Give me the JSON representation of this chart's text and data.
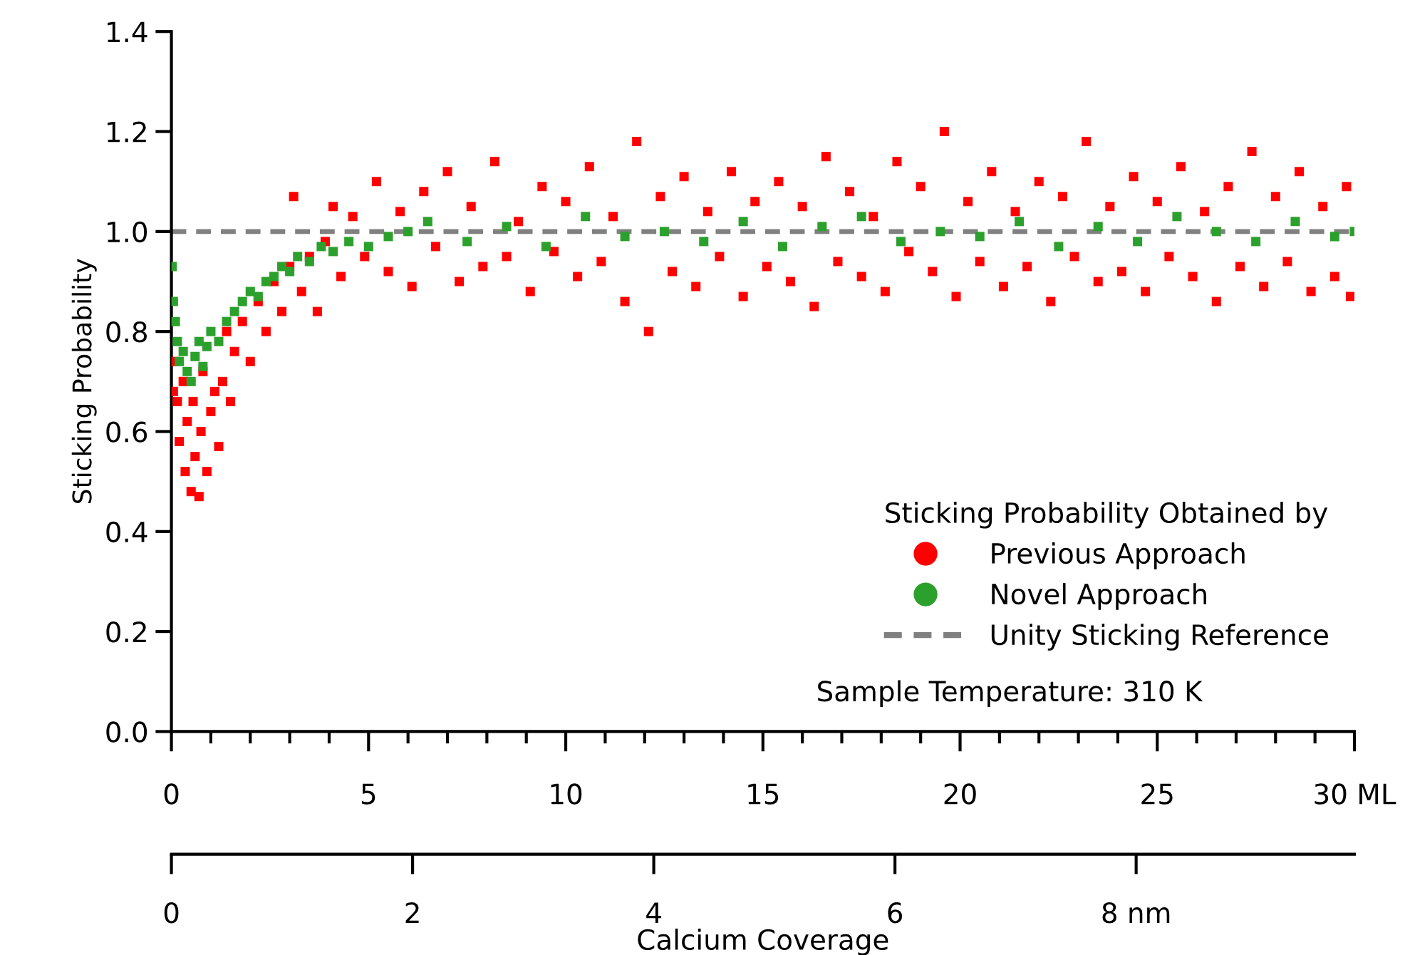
{
  "chart_data": {
    "type": "scatter",
    "ylabel": "Sticking Probability",
    "x2label": "Calcium Coverage",
    "legend_title": "Sticking Probability Obtained by",
    "annotations": [
      "Sample Temperature: 310 K"
    ],
    "xlim": [
      0,
      30
    ],
    "xticks": [
      0,
      {
        "value": 1,
        "label": null
      },
      {
        "value": 2,
        "label": null
      },
      {
        "value": 3,
        "label": null
      },
      {
        "value": 4,
        "label": null
      },
      5,
      {
        "value": 6,
        "label": null
      },
      {
        "value": 7,
        "label": null
      },
      {
        "value": 8,
        "label": null
      },
      {
        "value": 9,
        "label": null
      },
      10,
      {
        "value": 11,
        "label": null
      },
      {
        "value": 12,
        "label": null
      },
      {
        "value": 13,
        "label": null
      },
      {
        "value": 14,
        "label": null
      },
      15,
      {
        "value": 16,
        "label": null
      },
      {
        "value": 17,
        "label": null
      },
      {
        "value": 18,
        "label": null
      },
      {
        "value": 19,
        "label": null
      },
      20,
      {
        "value": 21,
        "label": null
      },
      {
        "value": 22,
        "label": null
      },
      {
        "value": 23,
        "label": null
      },
      {
        "value": 24,
        "label": null
      },
      25,
      {
        "value": 26,
        "label": null
      },
      {
        "value": 27,
        "label": null
      },
      {
        "value": 28,
        "label": null
      },
      {
        "value": 29,
        "label": null
      },
      {
        "value": 30,
        "label": "30 ML"
      }
    ],
    "x2lim": [
      0,
      9.81
    ],
    "x2ticks": [
      0,
      2,
      4,
      6,
      {
        "value": 8,
        "label": "8 nm"
      }
    ],
    "ylim": [
      0,
      1.4
    ],
    "yticks": [
      {
        "value": 0,
        "label": "0.0"
      },
      0.2,
      0.4,
      0.6,
      0.8,
      {
        "value": 1,
        "label": "1.0"
      },
      1.2,
      1.4
    ],
    "grid": false,
    "legend": "bottom right",
    "marker": "square",
    "ref_lines": [
      {
        "axis": "y",
        "value": 1.0,
        "label": "Unity Sticking Reference",
        "color": "#808080",
        "line_style": "dashed"
      }
    ],
    "series": [
      {
        "name": "Previous Approach",
        "color": "#ff0000",
        "x": [
          0.05,
          0.1,
          0.15,
          0.2,
          0.3,
          0.35,
          0.4,
          0.5,
          0.55,
          0.6,
          0.7,
          0.75,
          0.8,
          0.9,
          1.0,
          1.1,
          1.2,
          1.3,
          1.4,
          1.5,
          1.6,
          1.8,
          2.0,
          2.2,
          2.4,
          2.6,
          2.8,
          3.0,
          3.1,
          3.3,
          3.5,
          3.7,
          3.9,
          4.1,
          4.3,
          4.6,
          4.9,
          5.2,
          5.5,
          5.8,
          6.1,
          6.4,
          6.7,
          7.0,
          7.3,
          7.6,
          7.9,
          8.2,
          8.5,
          8.8,
          9.1,
          9.4,
          9.7,
          10.0,
          10.3,
          10.6,
          10.9,
          11.2,
          11.5,
          11.8,
          12.1,
          12.4,
          12.7,
          13.0,
          13.3,
          13.6,
          13.9,
          14.2,
          14.5,
          14.8,
          15.1,
          15.4,
          15.7,
          16.0,
          16.3,
          16.6,
          16.9,
          17.2,
          17.5,
          17.8,
          18.1,
          18.4,
          18.7,
          19.0,
          19.3,
          19.6,
          19.9,
          20.2,
          20.5,
          20.8,
          21.1,
          21.4,
          21.7,
          22.0,
          22.3,
          22.6,
          22.9,
          23.2,
          23.5,
          23.8,
          24.1,
          24.4,
          24.7,
          25.0,
          25.3,
          25.6,
          25.9,
          26.2,
          26.5,
          26.8,
          27.1,
          27.4,
          27.7,
          28.0,
          28.3,
          28.6,
          28.9,
          29.2,
          29.5,
          29.8,
          29.9
        ],
        "values": [
          0.68,
          0.74,
          0.66,
          0.58,
          0.7,
          0.52,
          0.62,
          0.48,
          0.66,
          0.55,
          0.47,
          0.6,
          0.72,
          0.52,
          0.64,
          0.68,
          0.57,
          0.7,
          0.8,
          0.66,
          0.76,
          0.82,
          0.74,
          0.86,
          0.8,
          0.9,
          0.84,
          0.93,
          1.07,
          0.88,
          0.95,
          0.84,
          0.98,
          1.05,
          0.91,
          1.03,
          0.95,
          1.1,
          0.92,
          1.04,
          0.89,
          1.08,
          0.97,
          1.12,
          0.9,
          1.05,
          0.93,
          1.14,
          0.95,
          1.02,
          0.88,
          1.09,
          0.96,
          1.06,
          0.91,
          1.13,
          0.94,
          1.03,
          0.86,
          1.18,
          0.8,
          1.07,
          0.92,
          1.11,
          0.89,
          1.04,
          0.95,
          1.12,
          0.87,
          1.06,
          0.93,
          1.1,
          0.9,
          1.05,
          0.85,
          1.15,
          0.94,
          1.08,
          0.91,
          1.03,
          0.88,
          1.14,
          0.96,
          1.09,
          0.92,
          1.2,
          0.87,
          1.06,
          0.94,
          1.12,
          0.89,
          1.04,
          0.93,
          1.1,
          0.86,
          1.07,
          0.95,
          1.18,
          0.9,
          1.05,
          0.92,
          1.11,
          0.88,
          1.06,
          0.95,
          1.13,
          0.91,
          1.04,
          0.86,
          1.09,
          0.93,
          1.16,
          0.89,
          1.07,
          0.94,
          1.12,
          0.88,
          1.05,
          0.91,
          1.09,
          0.87
        ]
      },
      {
        "name": "Novel Approach",
        "color": "#2ca02c",
        "x": [
          0.02,
          0.05,
          0.1,
          0.15,
          0.2,
          0.3,
          0.4,
          0.5,
          0.6,
          0.7,
          0.8,
          0.9,
          1.0,
          1.2,
          1.4,
          1.6,
          1.8,
          2.0,
          2.2,
          2.4,
          2.6,
          2.8,
          3.0,
          3.2,
          3.5,
          3.8,
          4.1,
          4.5,
          5.0,
          5.5,
          6.0,
          6.5,
          7.5,
          8.5,
          9.5,
          10.5,
          11.5,
          12.5,
          13.5,
          14.5,
          15.5,
          16.5,
          17.5,
          18.5,
          19.5,
          20.5,
          21.5,
          22.5,
          23.5,
          24.5,
          25.5,
          26.5,
          27.5,
          28.5,
          29.5,
          30.0
        ],
        "values": [
          0.93,
          0.86,
          0.82,
          0.78,
          0.74,
          0.76,
          0.72,
          0.7,
          0.75,
          0.78,
          0.73,
          0.77,
          0.8,
          0.78,
          0.82,
          0.84,
          0.86,
          0.88,
          0.87,
          0.9,
          0.91,
          0.93,
          0.92,
          0.95,
          0.94,
          0.97,
          0.96,
          0.98,
          0.97,
          0.99,
          1.0,
          1.02,
          0.98,
          1.01,
          0.97,
          1.03,
          0.99,
          1.0,
          0.98,
          1.02,
          0.97,
          1.01,
          1.03,
          0.98,
          1.0,
          0.99,
          1.02,
          0.97,
          1.01,
          0.98,
          1.03,
          1.0,
          0.98,
          1.02,
          0.99,
          1.0
        ]
      }
    ]
  }
}
